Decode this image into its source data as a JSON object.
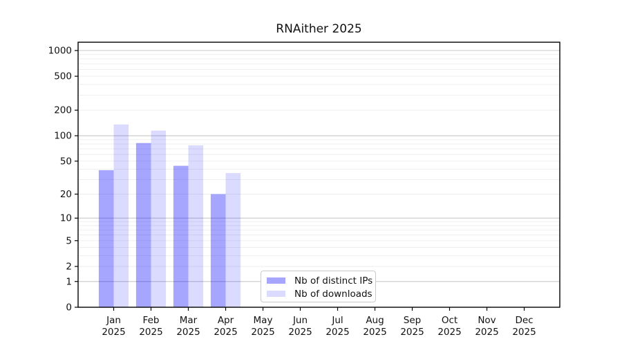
{
  "chart_data": {
    "type": "bar",
    "title": "RNAither 2025",
    "scale": "log1p",
    "grid": "horizontal",
    "legend_position": "bottom-center",
    "year": "2025",
    "categories": [
      "Jan",
      "Feb",
      "Mar",
      "Apr",
      "May",
      "Jun",
      "Jul",
      "Aug",
      "Sep",
      "Oct",
      "Nov",
      "Dec"
    ],
    "series": [
      {
        "name": "Nb of distinct IPs",
        "color": "rgba(0,0,255,0.35)",
        "values": [
          39,
          82,
          44,
          20,
          0,
          0,
          0,
          0,
          0,
          0,
          0,
          0
        ]
      },
      {
        "name": "Nb of downloads",
        "color": "rgba(0,0,255,0.14)",
        "values": [
          136,
          115,
          77,
          36,
          0,
          0,
          0,
          0,
          0,
          0,
          0,
          0
        ]
      }
    ],
    "yticks": [
      0,
      1,
      2,
      5,
      10,
      20,
      50,
      100,
      200,
      500,
      1000
    ],
    "ylim": [
      0,
      1000
    ]
  }
}
